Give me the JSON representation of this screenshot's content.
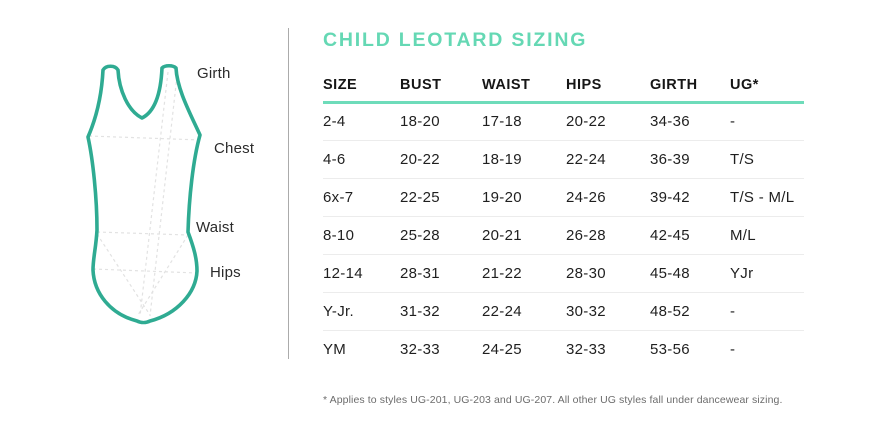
{
  "title": "CHILD LEOTARD SIZING",
  "illustration": {
    "description": "leotard measurement diagram",
    "labels": [
      {
        "text": "Girth"
      },
      {
        "text": "Chest"
      },
      {
        "text": "Waist"
      },
      {
        "text": "Hips"
      }
    ]
  },
  "table": {
    "columns": [
      "SIZE",
      "BUST",
      "WAIST",
      "HIPS",
      "GIRTH",
      "UG*"
    ],
    "rows": [
      [
        "2-4",
        "18-20",
        "17-18",
        "20-22",
        "34-36",
        "-"
      ],
      [
        "4-6",
        "20-22",
        "18-19",
        "22-24",
        "36-39",
        "T/S"
      ],
      [
        "6x-7",
        "22-25",
        "19-20",
        "24-26",
        "39-42",
        "T/S - M/L"
      ],
      [
        "8-10",
        "25-28",
        "20-21",
        "26-28",
        "42-45",
        "M/L"
      ],
      [
        "12-14",
        "28-31",
        "21-22",
        "28-30",
        "45-48",
        "YJr"
      ],
      [
        "Y-Jr.",
        "31-32",
        "22-24",
        "30-32",
        "48-52",
        "-"
      ],
      [
        "YM",
        "32-33",
        "24-25",
        "32-33",
        "53-56",
        "-"
      ]
    ]
  },
  "footnote": "* Applies to styles UG-201, UG-203 and UG-207. All other UG styles fall under dancewear sizing.",
  "colors": {
    "accent_mint": "#65d8b4",
    "header_rule_mint": "#6edcba",
    "leotard_teal": "#2fab92",
    "row_divider": "#ececec",
    "vertical_divider": "#ababab",
    "text_dark": "#1f1f1f",
    "footnote_gray": "#6c6c6c",
    "dashed_guides": "#e2e2e2"
  }
}
